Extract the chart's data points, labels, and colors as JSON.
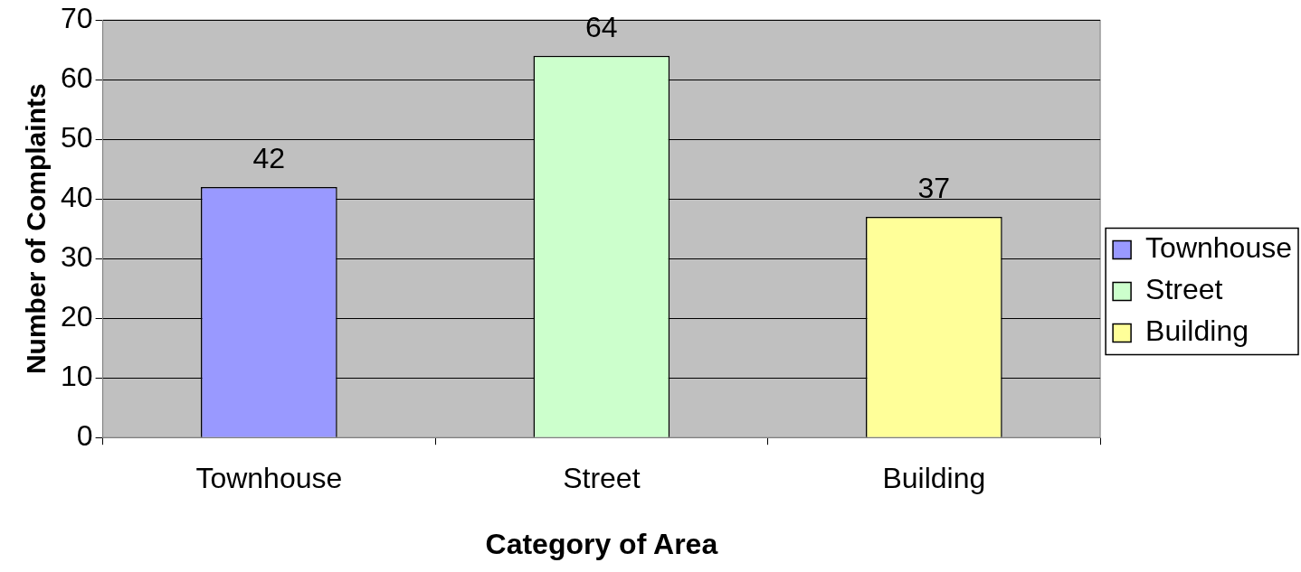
{
  "chart_data": {
    "type": "bar",
    "xlabel": "Category of Area",
    "ylabel": "Number of Complaints",
    "categories": [
      "Townhouse",
      "Street",
      "Building"
    ],
    "series": [
      {
        "name": "Townhouse",
        "color": "#9999ff",
        "values": [
          42,
          null,
          null
        ]
      },
      {
        "name": "Street",
        "color": "#ccffcc",
        "values": [
          null,
          64,
          null
        ]
      },
      {
        "name": "Building",
        "color": "#ffff99",
        "values": [
          null,
          null,
          37
        ]
      }
    ],
    "ylim": [
      0,
      70
    ],
    "yticks": [
      0,
      10,
      20,
      30,
      40,
      50,
      60,
      70
    ],
    "grid": "y",
    "legend": "right",
    "data_labels": true
  }
}
